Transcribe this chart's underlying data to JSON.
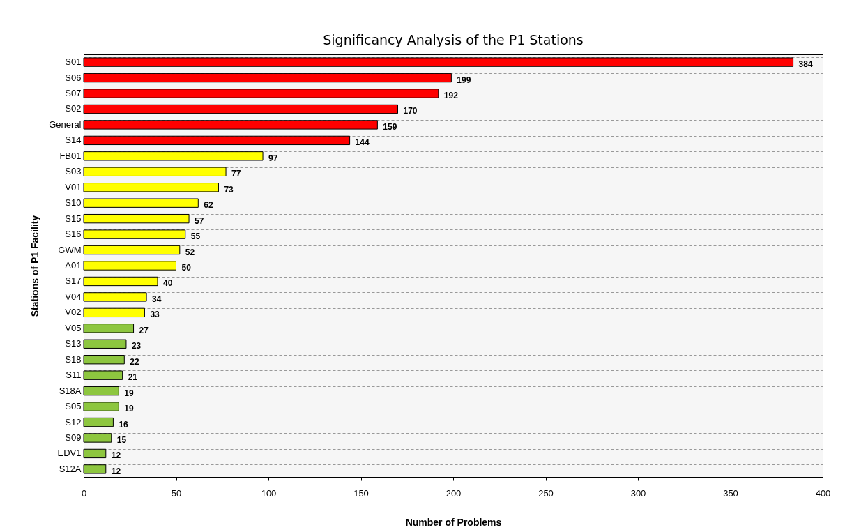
{
  "chart_data": {
    "type": "bar",
    "orientation": "horizontal",
    "title": "Significancy Analysis of the P1 Stations",
    "xlabel": "Number of Problems",
    "ylabel": "Stations of P1 Facility",
    "categories": [
      "S01",
      "S06",
      "S07",
      "S02",
      "General",
      "S14",
      "FB01",
      "S03",
      "V01",
      "S10",
      "S15",
      "S16",
      "GWM",
      "A01",
      "S17",
      "V04",
      "V02",
      "V05",
      "S13",
      "S18",
      "S11",
      "S18A",
      "S05",
      "S12",
      "S09",
      "EDV1",
      "S12A"
    ],
    "values": [
      384,
      199,
      192,
      170,
      159,
      144,
      97,
      77,
      73,
      62,
      57,
      55,
      52,
      50,
      40,
      34,
      33,
      27,
      23,
      22,
      21,
      19,
      19,
      16,
      15,
      12,
      12
    ],
    "colors": [
      "#ff0000",
      "#ff0000",
      "#ff0000",
      "#ff0000",
      "#ff0000",
      "#ff0000",
      "#ffff00",
      "#ffff00",
      "#ffff00",
      "#ffff00",
      "#ffff00",
      "#ffff00",
      "#ffff00",
      "#ffff00",
      "#ffff00",
      "#ffff00",
      "#ffff00",
      "#8dc63f",
      "#8dc63f",
      "#8dc63f",
      "#8dc63f",
      "#8dc63f",
      "#8dc63f",
      "#8dc63f",
      "#8dc63f",
      "#8dc63f",
      "#8dc63f"
    ],
    "xlim": [
      0,
      400
    ],
    "xticks": [
      0,
      50,
      100,
      150,
      200,
      250,
      300,
      350,
      400
    ],
    "grid": "y",
    "data_labels": true
  }
}
